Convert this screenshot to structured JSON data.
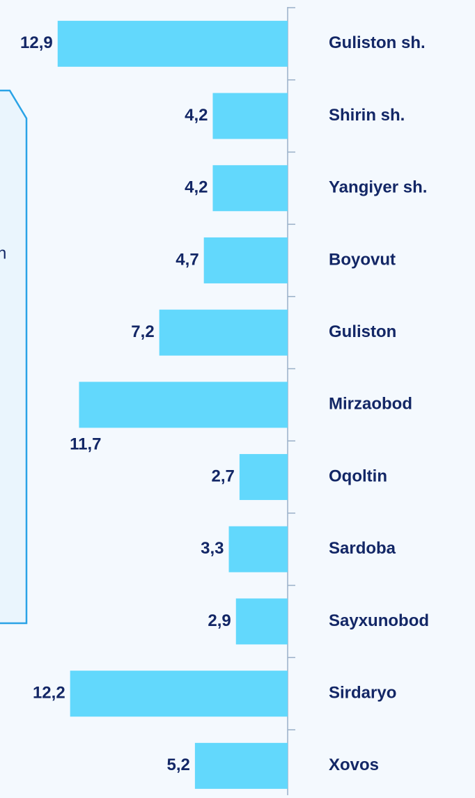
{
  "chart_data": {
    "type": "bar",
    "categories": [
      "Guliston sh.",
      "Shirin sh.",
      "Yangiyer sh.",
      "Boyovut",
      "Guliston",
      "Mirzaobod",
      "Oqoltin",
      "Sardoba",
      "Sayxunobod",
      "Sirdaryo",
      "Xovos"
    ],
    "values": [
      12.9,
      4.2,
      4.2,
      4.7,
      7.2,
      11.7,
      2.7,
      3.3,
      2.9,
      12.2,
      5.2
    ],
    "value_labels": [
      "12,9",
      "4,2",
      "4,2",
      "4,7",
      "7,2",
      "11,7",
      "2,7",
      "3,3",
      "2,9",
      "12,2",
      "5,2"
    ],
    "color": "#62d8fc"
  },
  "panel": {
    "text": "n"
  }
}
